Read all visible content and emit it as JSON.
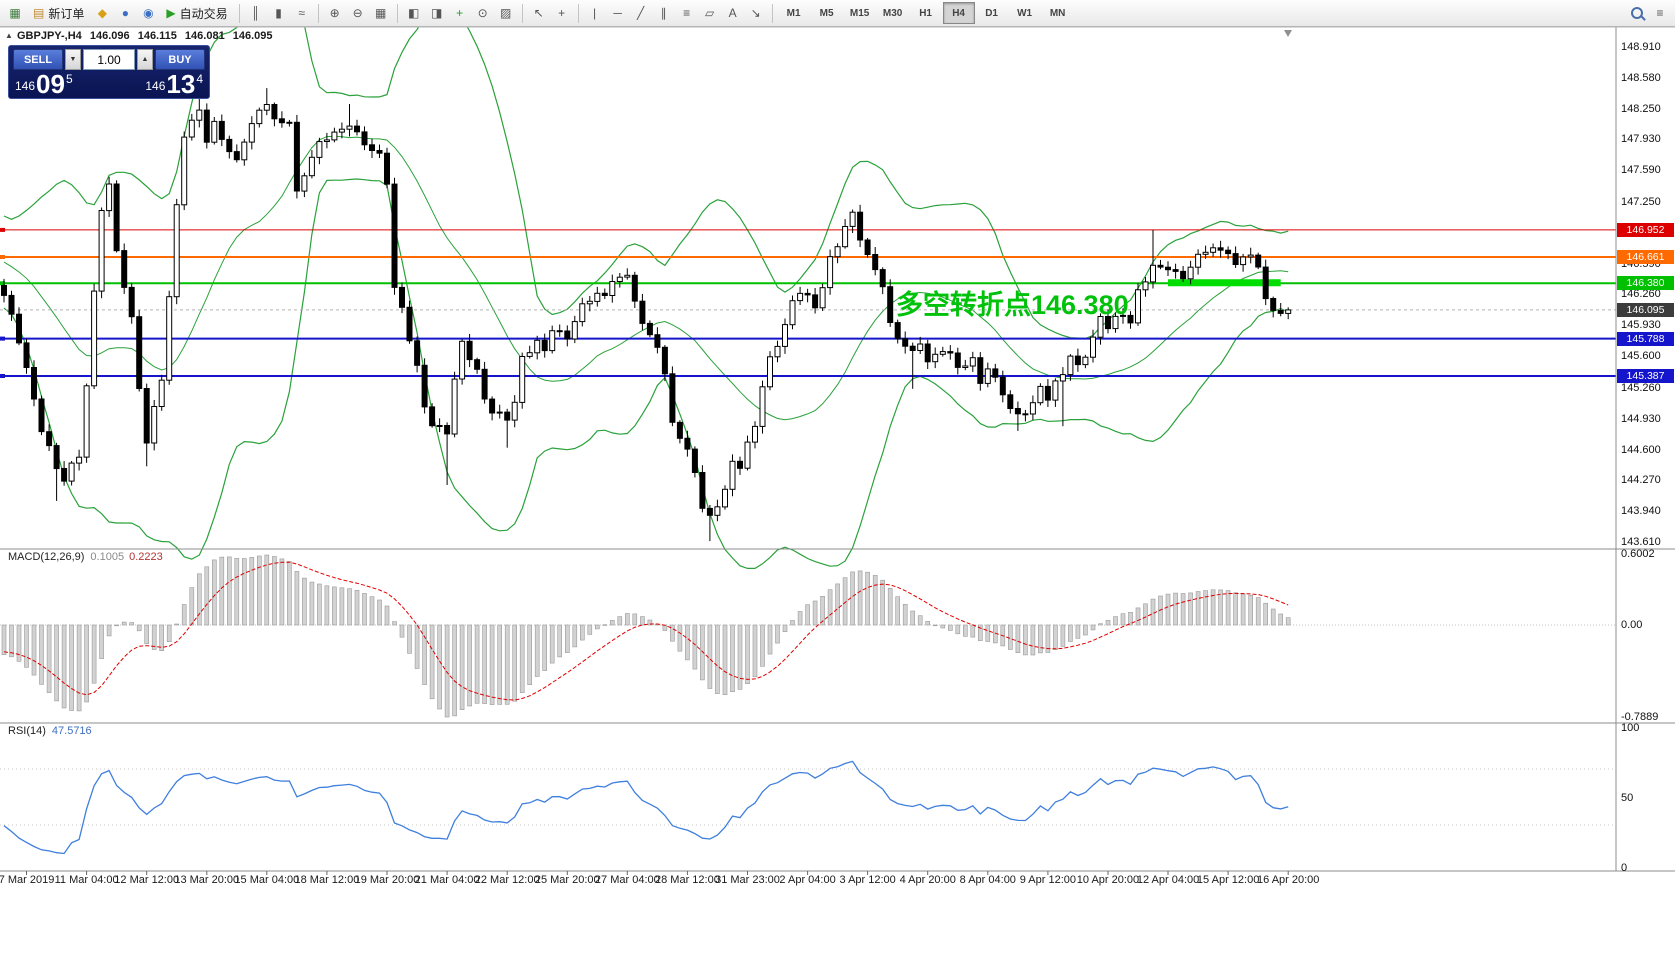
{
  "toolbar": {
    "groups": [
      {
        "items": [
          {
            "name": "new-chart-button",
            "glyph": "▦",
            "color": "#3c7a3c"
          },
          {
            "name": "new-order-button",
            "glyph": "▤",
            "color": "#c08a30",
            "label": "新订单"
          },
          {
            "name": "metaeditor-button",
            "glyph": "◆",
            "color": "#d8a018"
          },
          {
            "name": "mql5-community-button",
            "glyph": "●",
            "color": "#3b6fc4"
          },
          {
            "name": "data-window-button",
            "glyph": "◉",
            "color": "#3b6fc4"
          },
          {
            "name": "autotrading-button",
            "glyph": "▶",
            "color": "#28a028",
            "label": "自动交易"
          }
        ]
      },
      {
        "items": [
          {
            "name": "bar-chart-button",
            "glyph": "║"
          },
          {
            "name": "candlestick-chart-button",
            "glyph": "▮"
          },
          {
            "name": "line-chart-button",
            "glyph": "≈"
          }
        ]
      },
      {
        "items": [
          {
            "name": "zoom-in-button",
            "glyph": "⊕"
          },
          {
            "name": "zoom-out-button",
            "glyph": "⊖"
          },
          {
            "name": "tile-windows-button",
            "glyph": "▦"
          }
        ]
      },
      {
        "items": [
          {
            "name": "auto-arrange-button",
            "glyph": "◧"
          },
          {
            "name": "chart-shift-button",
            "glyph": "◨"
          },
          {
            "name": "indicators-button",
            "glyph": "+",
            "color": "#28a028"
          },
          {
            "name": "periods-button",
            "glyph": "⊙"
          },
          {
            "name": "templates-button",
            "glyph": "▨"
          }
        ]
      },
      {
        "items": [
          {
            "name": "cursor-button",
            "glyph": "↖"
          },
          {
            "name": "crosshair-button",
            "glyph": "+"
          }
        ]
      },
      {
        "items": [
          {
            "name": "vertical-line-button",
            "glyph": "|"
          },
          {
            "name": "horizontal-line-button",
            "glyph": "─"
          },
          {
            "name": "trendline-button",
            "glyph": "╱"
          },
          {
            "name": "channel-button",
            "glyph": "∥"
          },
          {
            "name": "fibonacci-button",
            "glyph": "≡"
          },
          {
            "name": "shapes-button",
            "glyph": "▱"
          },
          {
            "name": "text-button",
            "glyph": "A"
          },
          {
            "name": "arrows-button",
            "glyph": "↘"
          }
        ]
      },
      {
        "type": "timeframes",
        "items": [
          {
            "name": "tf-m1",
            "label": "M1"
          },
          {
            "name": "tf-m5",
            "label": "M5"
          },
          {
            "name": "tf-m15",
            "label": "M15"
          },
          {
            "name": "tf-m30",
            "label": "M30"
          },
          {
            "name": "tf-h1",
            "label": "H1"
          },
          {
            "name": "tf-h4",
            "label": "H4",
            "active": true
          },
          {
            "name": "tf-d1",
            "label": "D1"
          },
          {
            "name": "tf-w1",
            "label": "W1"
          },
          {
            "name": "tf-mn",
            "label": "MN"
          }
        ]
      }
    ],
    "right_items": [
      {
        "name": "search-button",
        "glyph": "mag"
      },
      {
        "name": "menu-button",
        "glyph": "≡"
      }
    ]
  },
  "chart": {
    "ohlc_header": {
      "symbol_period": "GBPJPY-,H4",
      "open": "146.096",
      "high": "146.115",
      "low": "146.081",
      "close": "146.095"
    },
    "collapse_marker": "▲",
    "trade_panel": {
      "sell_label": "SELL",
      "buy_label": "BUY",
      "volume": "1.00",
      "spin_down_glyph": "▼",
      "spin_up_glyph": "▲",
      "sell_price": {
        "prefix": "146",
        "big": "09",
        "sup": "5"
      },
      "buy_price": {
        "prefix": "146",
        "big": "13",
        "sup": "4"
      }
    },
    "annotation": {
      "text": "多空转折点146.380",
      "color": "#00c20a"
    }
  },
  "chart_data": {
    "type": "candlestick",
    "symbol": "GBPJPY-",
    "timeframe": "H4",
    "y_range": [
      143.535,
      149.124
    ],
    "y_axis_ticks": [
      "148.910",
      "148.580",
      "148.250",
      "147.930",
      "147.590",
      "147.250",
      "146.930",
      "146.590",
      "146.260",
      "145.930",
      "145.600",
      "145.260",
      "144.930",
      "144.600",
      "144.270",
      "143.940",
      "143.610"
    ],
    "candle_count": 172,
    "last_close": 146.095,
    "close_anchors": [
      [
        0,
        146.25
      ],
      [
        2,
        145.75
      ],
      [
        5,
        144.85
      ],
      [
        7,
        144.4
      ],
      [
        8,
        144.25
      ],
      [
        10,
        144.55
      ],
      [
        11,
        145.3
      ],
      [
        12,
        146.3
      ],
      [
        13,
        147.2
      ],
      [
        14,
        147.4
      ],
      [
        15,
        146.7
      ],
      [
        17,
        146.0
      ],
      [
        18,
        145.3
      ],
      [
        19,
        144.7
      ],
      [
        21,
        145.35
      ],
      [
        22,
        146.2
      ],
      [
        23,
        147.2
      ],
      [
        24,
        148.0
      ],
      [
        26,
        148.25
      ],
      [
        27,
        147.9
      ],
      [
        28,
        148.05
      ],
      [
        30,
        147.8
      ],
      [
        31,
        147.7
      ],
      [
        32,
        147.95
      ],
      [
        34,
        148.2
      ],
      [
        35,
        148.3
      ],
      [
        36,
        148.1
      ],
      [
        38,
        148.15
      ],
      [
        39,
        147.35
      ],
      [
        40,
        147.55
      ],
      [
        42,
        147.85
      ],
      [
        43,
        147.95
      ],
      [
        44,
        148.0
      ],
      [
        46,
        148.1
      ],
      [
        47,
        147.95
      ],
      [
        48,
        147.85
      ],
      [
        50,
        147.75
      ],
      [
        51,
        147.5
      ],
      [
        52,
        146.35
      ],
      [
        53,
        146.1
      ],
      [
        55,
        145.45
      ],
      [
        56,
        145.05
      ],
      [
        57,
        144.9
      ],
      [
        59,
        144.8
      ],
      [
        60,
        145.35
      ],
      [
        61,
        145.7
      ],
      [
        63,
        145.45
      ],
      [
        64,
        145.15
      ],
      [
        65,
        145.05
      ],
      [
        67,
        144.9
      ],
      [
        68,
        145.1
      ],
      [
        69,
        145.55
      ],
      [
        71,
        145.8
      ],
      [
        72,
        145.65
      ],
      [
        73,
        145.9
      ],
      [
        75,
        145.75
      ],
      [
        76,
        146.0
      ],
      [
        77,
        146.15
      ],
      [
        79,
        146.3
      ],
      [
        80,
        146.2
      ],
      [
        81,
        146.4
      ],
      [
        83,
        146.45
      ],
      [
        84,
        146.25
      ],
      [
        85,
        145.95
      ],
      [
        87,
        145.7
      ],
      [
        88,
        145.35
      ],
      [
        89,
        144.9
      ],
      [
        91,
        144.6
      ],
      [
        92,
        144.4
      ],
      [
        93,
        143.95
      ],
      [
        94,
        143.85
      ],
      [
        96,
        144.15
      ],
      [
        97,
        144.5
      ],
      [
        98,
        144.45
      ],
      [
        100,
        144.85
      ],
      [
        101,
        145.25
      ],
      [
        102,
        145.55
      ],
      [
        104,
        145.95
      ],
      [
        105,
        146.2
      ],
      [
        106,
        146.3
      ],
      [
        108,
        146.1
      ],
      [
        109,
        146.35
      ],
      [
        110,
        146.65
      ],
      [
        112,
        147.0
      ],
      [
        113,
        147.1
      ],
      [
        114,
        146.85
      ],
      [
        115,
        146.65
      ],
      [
        117,
        146.4
      ],
      [
        118,
        145.95
      ],
      [
        119,
        145.8
      ],
      [
        121,
        145.6
      ],
      [
        122,
        145.75
      ],
      [
        123,
        145.55
      ],
      [
        125,
        145.7
      ],
      [
        126,
        145.6
      ],
      [
        127,
        145.45
      ],
      [
        129,
        145.55
      ],
      [
        130,
        145.35
      ],
      [
        131,
        145.5
      ],
      [
        133,
        145.2
      ],
      [
        134,
        145.0
      ],
      [
        135,
        144.95
      ],
      [
        137,
        145.1
      ],
      [
        138,
        145.3
      ],
      [
        139,
        145.15
      ],
      [
        141,
        145.4
      ],
      [
        142,
        145.6
      ],
      [
        143,
        145.5
      ],
      [
        145,
        145.8
      ],
      [
        146,
        146.0
      ],
      [
        147,
        145.9
      ],
      [
        149,
        146.05
      ],
      [
        150,
        146.0
      ],
      [
        151,
        146.3
      ],
      [
        153,
        146.55
      ],
      [
        154,
        146.5
      ],
      [
        155,
        146.55
      ],
      [
        157,
        146.45
      ],
      [
        158,
        146.6
      ],
      [
        159,
        146.65
      ],
      [
        161,
        146.75
      ],
      [
        162,
        146.7
      ],
      [
        163,
        146.75
      ],
      [
        164,
        146.6
      ],
      [
        166,
        146.7
      ],
      [
        167,
        146.5
      ],
      [
        168,
        146.2
      ],
      [
        170,
        146.05
      ],
      [
        171,
        146.095
      ]
    ],
    "special_wicks": [
      [
        7,
        "low",
        144.05
      ],
      [
        19,
        "low",
        144.42
      ],
      [
        26,
        "high",
        148.42
      ],
      [
        35,
        "high",
        148.47
      ],
      [
        46,
        "high",
        148.3
      ],
      [
        59,
        "low",
        144.22
      ],
      [
        67,
        "low",
        144.62
      ],
      [
        94,
        "low",
        143.62
      ],
      [
        113,
        "high",
        147.16
      ],
      [
        121,
        "low",
        145.25
      ],
      [
        135,
        "low",
        144.8
      ],
      [
        141,
        "low",
        144.85
      ],
      [
        153,
        "high",
        146.95
      ]
    ],
    "x_tick_first_index": 3,
    "x_tick_step": 8,
    "x_tick_labels": [
      "7 Mar 2019",
      "11 Mar 04:00",
      "12 Mar 12:00",
      "13 Mar 20:00",
      "15 Mar 04:00",
      "18 Mar 12:00",
      "19 Mar 20:00",
      "21 Mar 04:00",
      "22 Mar 12:00",
      "25 Mar 20:00",
      "27 Mar 04:00",
      "28 Mar 12:00",
      "31 Mar 23:00",
      "2 Apr 04:00",
      "3 Apr 12:00",
      "4 Apr 20:00",
      "8 Apr 04:00",
      "9 Apr 12:00",
      "10 Apr 20:00",
      "12 Apr 04:00",
      "15 Apr 12:00",
      "16 Apr 20:00"
    ],
    "horizontal_lines": [
      {
        "price": 146.952,
        "label": "146.952",
        "color": "#dd0000",
        "width": 1
      },
      {
        "price": 146.661,
        "label": "146.661",
        "color": "#ff6a00",
        "width": 2
      },
      {
        "price": 146.38,
        "label": "146.380",
        "color": "#00c000",
        "width": 2
      },
      {
        "price": 145.788,
        "label": "145.788",
        "color": "#1515cc",
        "width": 2
      },
      {
        "price": 145.387,
        "label": "145.387",
        "color": "#1515cc",
        "width": 2
      }
    ],
    "current_price": {
      "value": 146.095,
      "label": "146.095",
      "badge_color": "#3c3c3c"
    },
    "highlight_segment": {
      "price": 146.385,
      "from_index": 155,
      "to_index": 170,
      "color": "#00dd00",
      "thickness": 7
    },
    "bollinger": {
      "period": 20,
      "deviation": 2,
      "color": "#2aa13a"
    },
    "macd": {
      "title": "MACD(12,26,9)",
      "value_main": "0.1005",
      "value_signal": "0.2223",
      "axis_max": "0.6002",
      "axis_zero": "0.00",
      "axis_min": "-0.7889",
      "hist_fill": "#d2d2d2",
      "hist_stroke": "#9a9a9a",
      "signal_color": "#e00000"
    },
    "rsi": {
      "title": "RSI(14)",
      "value": "47.5716",
      "axis": [
        "100",
        "50",
        "0"
      ],
      "color": "#3f7fdd",
      "levels": [
        30,
        70
      ]
    }
  }
}
